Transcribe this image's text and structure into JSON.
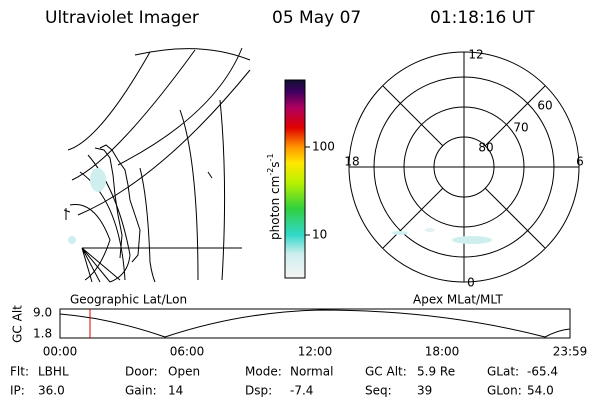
{
  "header": {
    "title": "Ultraviolet Imager",
    "date": "05 May 07",
    "time": "01:18:16 UT"
  },
  "map": {
    "label": "Geographic Lat/Lon"
  },
  "colorbar": {
    "label": {
      "base": "photon cm",
      "exp1": "-2",
      "unit": "s",
      "exp2": "-1"
    },
    "ticks": [
      "100",
      "10"
    ]
  },
  "polar": {
    "label": "Apex MLat/MLT",
    "mlt": {
      "top": "12",
      "left": "18",
      "right": "6",
      "bottom": "0"
    },
    "mlat": [
      "80",
      "70",
      "60"
    ]
  },
  "altitude": {
    "ylabel": "GC Alt",
    "yticks": [
      "9.0",
      "1.8"
    ],
    "xticks": [
      "00:00",
      "06:00",
      "12:00",
      "18:00",
      "23:59"
    ]
  },
  "footer": {
    "rows": [
      [
        {
          "label": "Flt:",
          "value": "LBHL"
        },
        {
          "label": "Door:",
          "value": "Open"
        },
        {
          "label": "Mode:",
          "value": "Normal"
        },
        {
          "label": "GC Alt:",
          "value": "5.9 Re"
        },
        {
          "label": "GLat:",
          "value": "-65.4"
        }
      ],
      [
        {
          "label": "IP:",
          "value": "36.0"
        },
        {
          "label": "Gain:",
          "value": "14"
        },
        {
          "label": "Dsp:",
          "value": "-7.4"
        },
        {
          "label": "Seq:",
          "value": "39"
        },
        {
          "label": "GLon:",
          "value": "54.0"
        }
      ]
    ]
  }
}
